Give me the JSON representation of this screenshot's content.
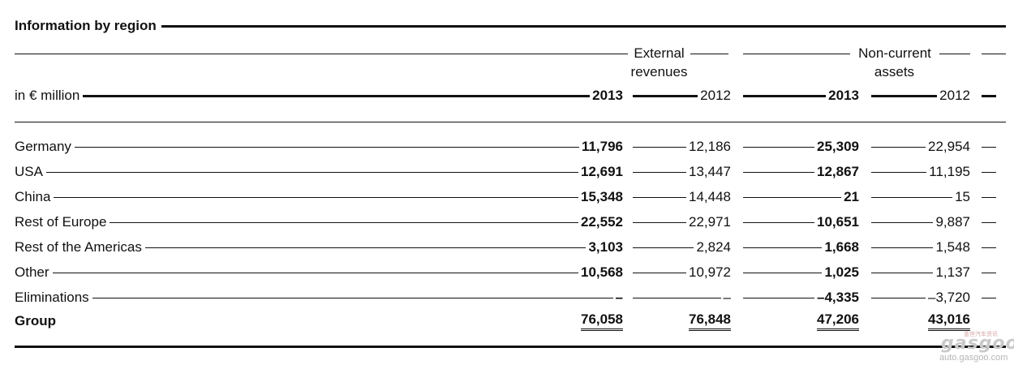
{
  "title": "Information by region",
  "header": {
    "group1": [
      "External",
      "revenues"
    ],
    "group2": [
      "Non-current",
      "assets"
    ],
    "unit": "in € million",
    "years": [
      "2013",
      "2012",
      "2013",
      "2012"
    ]
  },
  "rows": [
    {
      "label": "Germany",
      "values": [
        "11,796",
        "12,186",
        "25,309",
        "22,954"
      ]
    },
    {
      "label": "USA",
      "values": [
        "12,691",
        "13,447",
        "12,867",
        "11,195"
      ]
    },
    {
      "label": "China",
      "values": [
        "15,348",
        "14,448",
        "21",
        "15"
      ]
    },
    {
      "label": "Rest of Europe",
      "values": [
        "22,552",
        "22,971",
        "10,651",
        "9,887"
      ]
    },
    {
      "label": "Rest of the Americas",
      "values": [
        "3,103",
        "2,824",
        "1,668",
        "1,548"
      ]
    },
    {
      "label": "Other",
      "values": [
        "10,568",
        "10,972",
        "1,025",
        "1,137"
      ]
    },
    {
      "label": "Eliminations",
      "values": [
        "–",
        "–",
        "–4,335",
        "–3,720"
      ]
    }
  ],
  "total": {
    "label": "Group",
    "values": [
      "76,058",
      "76,848",
      "47,206",
      "43,016"
    ]
  },
  "watermark": {
    "logo": "gasgoo",
    "url": "auto.gasgoo.com",
    "tagline": "盖世汽车资讯"
  }
}
